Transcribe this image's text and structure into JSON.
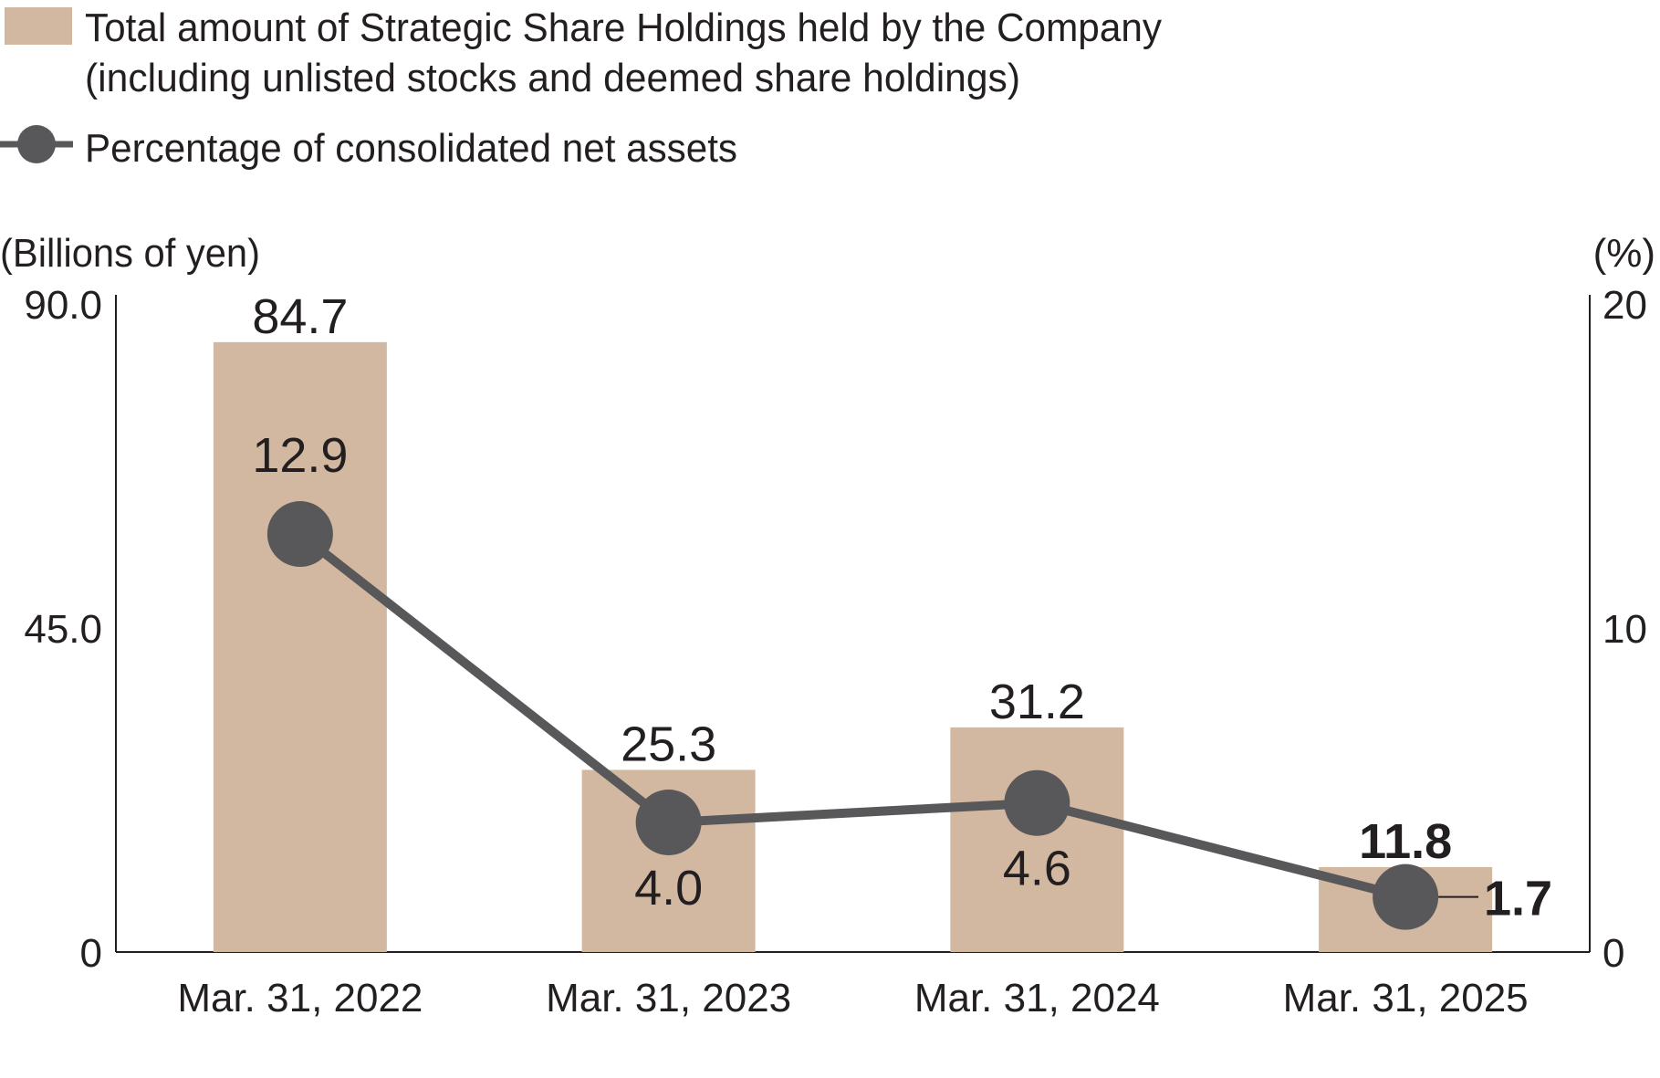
{
  "legend": {
    "bar_label_line1": "Total amount of Strategic Share Holdings held by the Company",
    "bar_label_line2": "(including unlisted stocks and deemed share holdings)",
    "line_label": "Percentage of consolidated net assets"
  },
  "colors": {
    "bar": "#d2b8a0",
    "line": "#58585a",
    "text": "#231f20",
    "axis": "#231f20"
  },
  "chart_data": {
    "type": "bar",
    "categories": [
      "Mar. 31, 2022",
      "Mar. 31, 2023",
      "Mar. 31, 2024",
      "Mar. 31, 2025"
    ],
    "series": [
      {
        "type": "bar",
        "axis": "left",
        "values": [
          84.7,
          25.3,
          31.2,
          11.8
        ],
        "labels": [
          "84.7",
          "25.3",
          "31.2",
          "11.8"
        ]
      },
      {
        "type": "line",
        "axis": "right",
        "values": [
          12.9,
          4.0,
          4.6,
          1.7
        ],
        "labels": [
          "12.9",
          "4.0",
          "4.6",
          "1.7"
        ]
      }
    ],
    "ylabel_left": "(Billions of yen)",
    "ylabel_right": "(%)",
    "ylim_left": [
      0,
      90
    ],
    "ylim_right": [
      0,
      20
    ],
    "yticks_left": [
      "0",
      "45.0",
      "90.0"
    ],
    "yticks_right": [
      "0",
      "10",
      "20"
    ],
    "grid": false,
    "legend_position": "top-left"
  }
}
